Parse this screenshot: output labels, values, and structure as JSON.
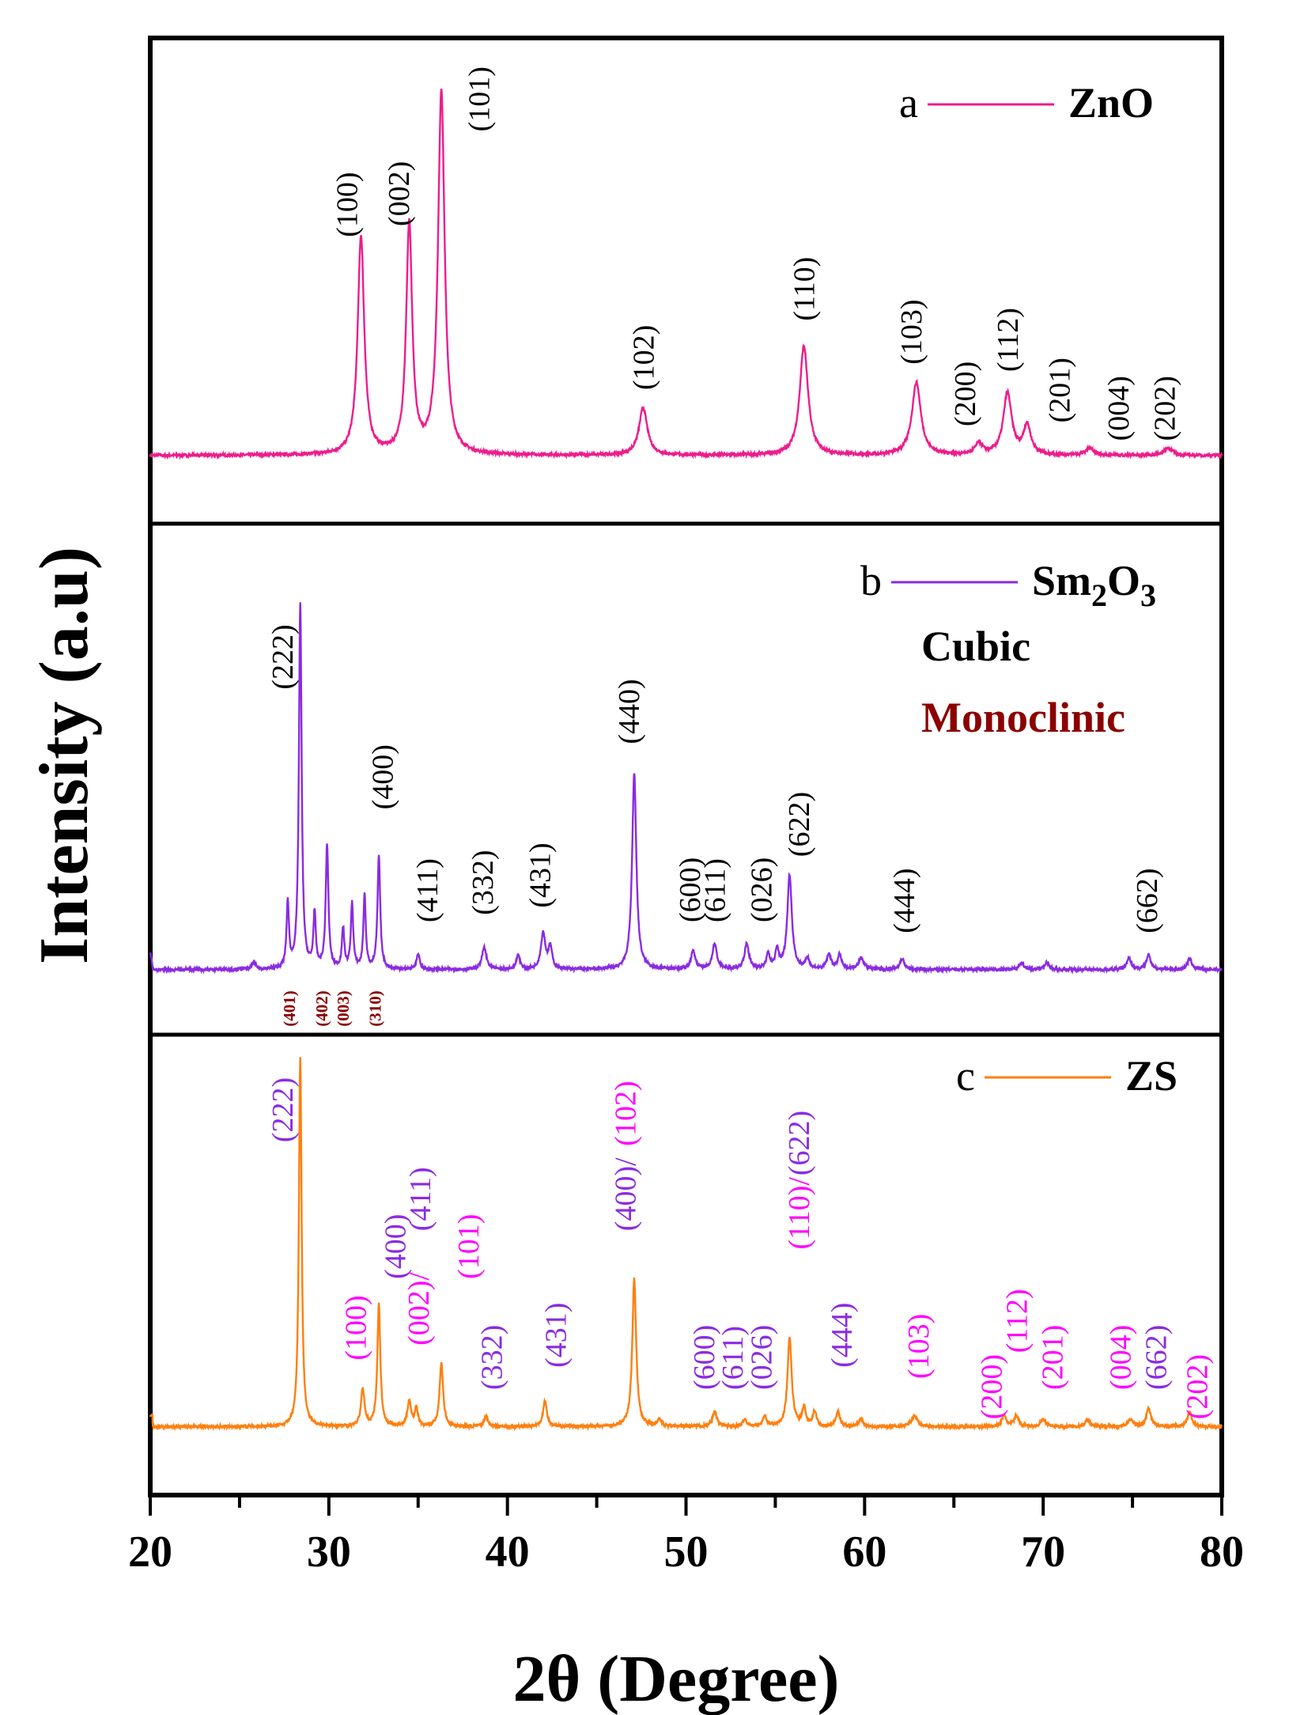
{
  "chart_data": {
    "type": "line",
    "xlabel": "2θ (Degree)",
    "ylabel": "Intensity (a.u)",
    "xlim": [
      20,
      80
    ],
    "xticks": [
      "20",
      "30",
      "40",
      "50",
      "60",
      "70",
      "80"
    ],
    "xtick_values": [
      20,
      30,
      40,
      50,
      60,
      70,
      80
    ],
    "colors": {
      "zno": "#ee1c8c",
      "sm2o3": "#8a2be2",
      "zs": "#ff7f0e",
      "cubic": "#000000",
      "monoclinic": "#8b0000",
      "zno_index": "#ff00ff",
      "sm_index": "#8a2be2"
    },
    "panels": [
      {
        "id": "a",
        "letter": "a",
        "name": "ZnO",
        "color": "#ee1c8c",
        "baseline": 0.02,
        "peaks": [
          {
            "x": 31.8,
            "h": 0.6,
            "w": 0.22
          },
          {
            "x": 34.5,
            "h": 0.63,
            "w": 0.2
          },
          {
            "x": 36.3,
            "h": 1.0,
            "w": 0.22
          },
          {
            "x": 47.6,
            "h": 0.13,
            "w": 0.28
          },
          {
            "x": 56.6,
            "h": 0.3,
            "w": 0.28
          },
          {
            "x": 62.9,
            "h": 0.2,
            "w": 0.3
          },
          {
            "x": 66.4,
            "h": 0.03,
            "w": 0.25
          },
          {
            "x": 68.0,
            "h": 0.17,
            "w": 0.28
          },
          {
            "x": 69.1,
            "h": 0.08,
            "w": 0.25
          },
          {
            "x": 72.6,
            "h": 0.02,
            "w": 0.25
          },
          {
            "x": 77.0,
            "h": 0.02,
            "w": 0.3
          }
        ],
        "labels": [
          {
            "text": "(100)",
            "x": 31.0,
            "y": 0.62,
            "color": "#000000"
          },
          {
            "text": "(002)",
            "x": 33.9,
            "y": 0.65,
            "color": "#000000"
          },
          {
            "text": "(101)",
            "x": 38.4,
            "y": 0.91,
            "color": "#000000"
          },
          {
            "text": "(102)",
            "x": 47.6,
            "y": 0.2,
            "color": "#000000"
          },
          {
            "text": "(110)",
            "x": 56.6,
            "y": 0.39,
            "color": "#000000"
          },
          {
            "text": "(103)",
            "x": 62.6,
            "y": 0.27,
            "color": "#000000"
          },
          {
            "text": "(200)",
            "x": 65.6,
            "y": 0.1,
            "color": "#000000"
          },
          {
            "text": "(112)",
            "x": 68.0,
            "y": 0.25,
            "color": "#000000"
          },
          {
            "text": "(201)",
            "x": 70.9,
            "y": 0.11,
            "color": "#000000"
          },
          {
            "text": "(004)",
            "x": 74.2,
            "y": 0.06,
            "color": "#000000"
          },
          {
            "text": "(202)",
            "x": 76.8,
            "y": 0.06,
            "color": "#000000"
          }
        ]
      },
      {
        "id": "b",
        "letter": "b",
        "name": "Sm2O3",
        "name_main": "Sm",
        "name_sub1": "2",
        "name_mid": "O",
        "name_sub2": "3",
        "color": "#8a2be2",
        "cubic_label": "Cubic",
        "monoclinic_label": "Monoclinic",
        "baseline": 0.02,
        "peaks": [
          {
            "x": 25.8,
            "h": 0.02,
            "w": 0.12
          },
          {
            "x": 27.7,
            "h": 0.18,
            "w": 0.08
          },
          {
            "x": 28.4,
            "h": 1.0,
            "w": 0.09
          },
          {
            "x": 29.2,
            "h": 0.15,
            "w": 0.08
          },
          {
            "x": 29.9,
            "h": 0.34,
            "w": 0.09
          },
          {
            "x": 30.8,
            "h": 0.11,
            "w": 0.08
          },
          {
            "x": 31.3,
            "h": 0.18,
            "w": 0.08
          },
          {
            "x": 32.0,
            "h": 0.2,
            "w": 0.08
          },
          {
            "x": 32.8,
            "h": 0.31,
            "w": 0.09
          },
          {
            "x": 35.0,
            "h": 0.04,
            "w": 0.12
          },
          {
            "x": 38.7,
            "h": 0.06,
            "w": 0.15
          },
          {
            "x": 40.6,
            "h": 0.04,
            "w": 0.12
          },
          {
            "x": 42.0,
            "h": 0.1,
            "w": 0.15
          },
          {
            "x": 42.4,
            "h": 0.06,
            "w": 0.12
          },
          {
            "x": 47.1,
            "h": 0.54,
            "w": 0.14
          },
          {
            "x": 50.4,
            "h": 0.05,
            "w": 0.15
          },
          {
            "x": 51.6,
            "h": 0.07,
            "w": 0.15
          },
          {
            "x": 53.4,
            "h": 0.07,
            "w": 0.15
          },
          {
            "x": 54.6,
            "h": 0.04,
            "w": 0.12
          },
          {
            "x": 55.1,
            "h": 0.05,
            "w": 0.12
          },
          {
            "x": 55.8,
            "h": 0.26,
            "w": 0.15
          },
          {
            "x": 56.8,
            "h": 0.03,
            "w": 0.12
          },
          {
            "x": 58.0,
            "h": 0.04,
            "w": 0.15
          },
          {
            "x": 58.6,
            "h": 0.04,
            "w": 0.12
          },
          {
            "x": 59.8,
            "h": 0.03,
            "w": 0.2
          },
          {
            "x": 62.1,
            "h": 0.03,
            "w": 0.15
          },
          {
            "x": 68.8,
            "h": 0.02,
            "w": 0.15
          },
          {
            "x": 70.2,
            "h": 0.02,
            "w": 0.15
          },
          {
            "x": 74.8,
            "h": 0.03,
            "w": 0.15
          },
          {
            "x": 75.9,
            "h": 0.04,
            "w": 0.15
          },
          {
            "x": 78.2,
            "h": 0.03,
            "w": 0.15
          }
        ],
        "labels": [
          {
            "text": "(222)",
            "x": 27.4,
            "y": 0.79,
            "color": "#000000"
          },
          {
            "text": "(400)",
            "x": 33.0,
            "y": 0.46,
            "color": "#000000"
          },
          {
            "text": "(411)",
            "x": 35.5,
            "y": 0.15,
            "color": "#000000"
          },
          {
            "text": "(332)",
            "x": 38.6,
            "y": 0.17,
            "color": "#000000"
          },
          {
            "text": "(431)",
            "x": 41.8,
            "y": 0.19,
            "color": "#000000"
          },
          {
            "text": "(440)",
            "x": 46.8,
            "y": 0.64,
            "color": "#000000"
          },
          {
            "text": "(600)",
            "x": 50.2,
            "y": 0.15,
            "color": "#000000"
          },
          {
            "text": "(611)",
            "x": 51.6,
            "y": 0.15,
            "color": "#000000"
          },
          {
            "text": "(026)",
            "x": 54.2,
            "y": 0.15,
            "color": "#000000"
          },
          {
            "text": "(622)",
            "x": 56.3,
            "y": 0.33,
            "color": "#000000"
          },
          {
            "text": "(444)",
            "x": 62.2,
            "y": 0.12,
            "color": "#000000"
          },
          {
            "text": "(662)",
            "x": 75.8,
            "y": 0.12,
            "color": "#000000"
          }
        ],
        "mono_labels": [
          {
            "text": "(401)",
            "x": 27.8
          },
          {
            "text": "(402)",
            "x": 29.6
          },
          {
            "text": "(003)",
            "x": 30.8
          },
          {
            "text": "(310)",
            "x": 32.6
          }
        ]
      },
      {
        "id": "c",
        "letter": "c",
        "name": "ZS",
        "color": "#ff7f0e",
        "baseline": 0.02,
        "peaks": [
          {
            "x": 28.4,
            "h": 1.0,
            "w": 0.09
          },
          {
            "x": 31.9,
            "h": 0.1,
            "w": 0.12
          },
          {
            "x": 32.8,
            "h": 0.33,
            "w": 0.1
          },
          {
            "x": 34.5,
            "h": 0.07,
            "w": 0.12
          },
          {
            "x": 34.9,
            "h": 0.05,
            "w": 0.1
          },
          {
            "x": 36.3,
            "h": 0.17,
            "w": 0.12
          },
          {
            "x": 38.8,
            "h": 0.03,
            "w": 0.12
          },
          {
            "x": 42.1,
            "h": 0.07,
            "w": 0.13
          },
          {
            "x": 47.1,
            "h": 0.4,
            "w": 0.13
          },
          {
            "x": 48.5,
            "h": 0.02,
            "w": 0.12
          },
          {
            "x": 51.6,
            "h": 0.04,
            "w": 0.15
          },
          {
            "x": 53.3,
            "h": 0.02,
            "w": 0.12
          },
          {
            "x": 54.4,
            "h": 0.03,
            "w": 0.12
          },
          {
            "x": 55.8,
            "h": 0.24,
            "w": 0.14
          },
          {
            "x": 56.6,
            "h": 0.05,
            "w": 0.12
          },
          {
            "x": 57.2,
            "h": 0.04,
            "w": 0.12
          },
          {
            "x": 58.5,
            "h": 0.04,
            "w": 0.13
          },
          {
            "x": 59.8,
            "h": 0.02,
            "w": 0.15
          },
          {
            "x": 62.8,
            "h": 0.03,
            "w": 0.2
          },
          {
            "x": 67.8,
            "h": 0.03,
            "w": 0.15
          },
          {
            "x": 68.5,
            "h": 0.03,
            "w": 0.15
          },
          {
            "x": 70.0,
            "h": 0.02,
            "w": 0.15
          },
          {
            "x": 72.5,
            "h": 0.02,
            "w": 0.15
          },
          {
            "x": 74.9,
            "h": 0.02,
            "w": 0.15
          },
          {
            "x": 75.9,
            "h": 0.05,
            "w": 0.15
          },
          {
            "x": 78.2,
            "h": 0.04,
            "w": 0.15
          }
        ],
        "labels": [
          {
            "text": "(222)",
            "x": 27.4,
            "y": 0.79,
            "color": "#8a2be2"
          },
          {
            "text": "(100)",
            "x": 31.5,
            "y": 0.2,
            "color": "#ff00ff"
          },
          {
            "text": "(400)",
            "x": 33.7,
            "y": 0.42,
            "color": "#8a2be2"
          },
          {
            "text": "(002)/",
            "x": 35.0,
            "y": 0.24,
            "color": "#ff00ff"
          },
          {
            "text": "(411)",
            "x": 35.1,
            "y": 0.55,
            "color": "#8a2be2"
          },
          {
            "text": "(101)",
            "x": 37.8,
            "y": 0.42,
            "color": "#ff00ff"
          },
          {
            "text": "(332)",
            "x": 39.1,
            "y": 0.12,
            "color": "#8a2be2"
          },
          {
            "text": "(431)",
            "x": 42.7,
            "y": 0.18,
            "color": "#8a2be2"
          },
          {
            "text": "(400)/",
            "x": 46.6,
            "y": 0.55,
            "color": "#8a2be2"
          },
          {
            "text": "(102)",
            "x": 46.6,
            "y": 0.78,
            "color": "#ff00ff"
          },
          {
            "text": "(600)",
            "x": 51.0,
            "y": 0.12,
            "color": "#8a2be2"
          },
          {
            "text": "(611)",
            "x": 52.6,
            "y": 0.12,
            "color": "#8a2be2"
          },
          {
            "text": "(026)",
            "x": 54.2,
            "y": 0.12,
            "color": "#8a2be2"
          },
          {
            "text": "(110)/",
            "x": 56.3,
            "y": 0.5,
            "color": "#ff00ff"
          },
          {
            "text": "(622)",
            "x": 56.3,
            "y": 0.7,
            "color": "#8a2be2"
          },
          {
            "text": "(444)",
            "x": 58.7,
            "y": 0.18,
            "color": "#8a2be2"
          },
          {
            "text": "(103)",
            "x": 63.0,
            "y": 0.15,
            "color": "#ff00ff"
          },
          {
            "text": "(200)",
            "x": 67.1,
            "y": 0.04,
            "color": "#ff00ff"
          },
          {
            "text": "(112)",
            "x": 68.5,
            "y": 0.22,
            "color": "#ff00ff"
          },
          {
            "text": "(201)",
            "x": 70.5,
            "y": 0.12,
            "color": "#ff00ff"
          },
          {
            "text": "(004)",
            "x": 74.3,
            "y": 0.12,
            "color": "#ff00ff"
          },
          {
            "text": "(662)",
            "x": 76.3,
            "y": 0.12,
            "color": "#8a2be2"
          },
          {
            "text": "(202)",
            "x": 78.6,
            "y": 0.04,
            "color": "#ff00ff"
          }
        ]
      }
    ]
  }
}
